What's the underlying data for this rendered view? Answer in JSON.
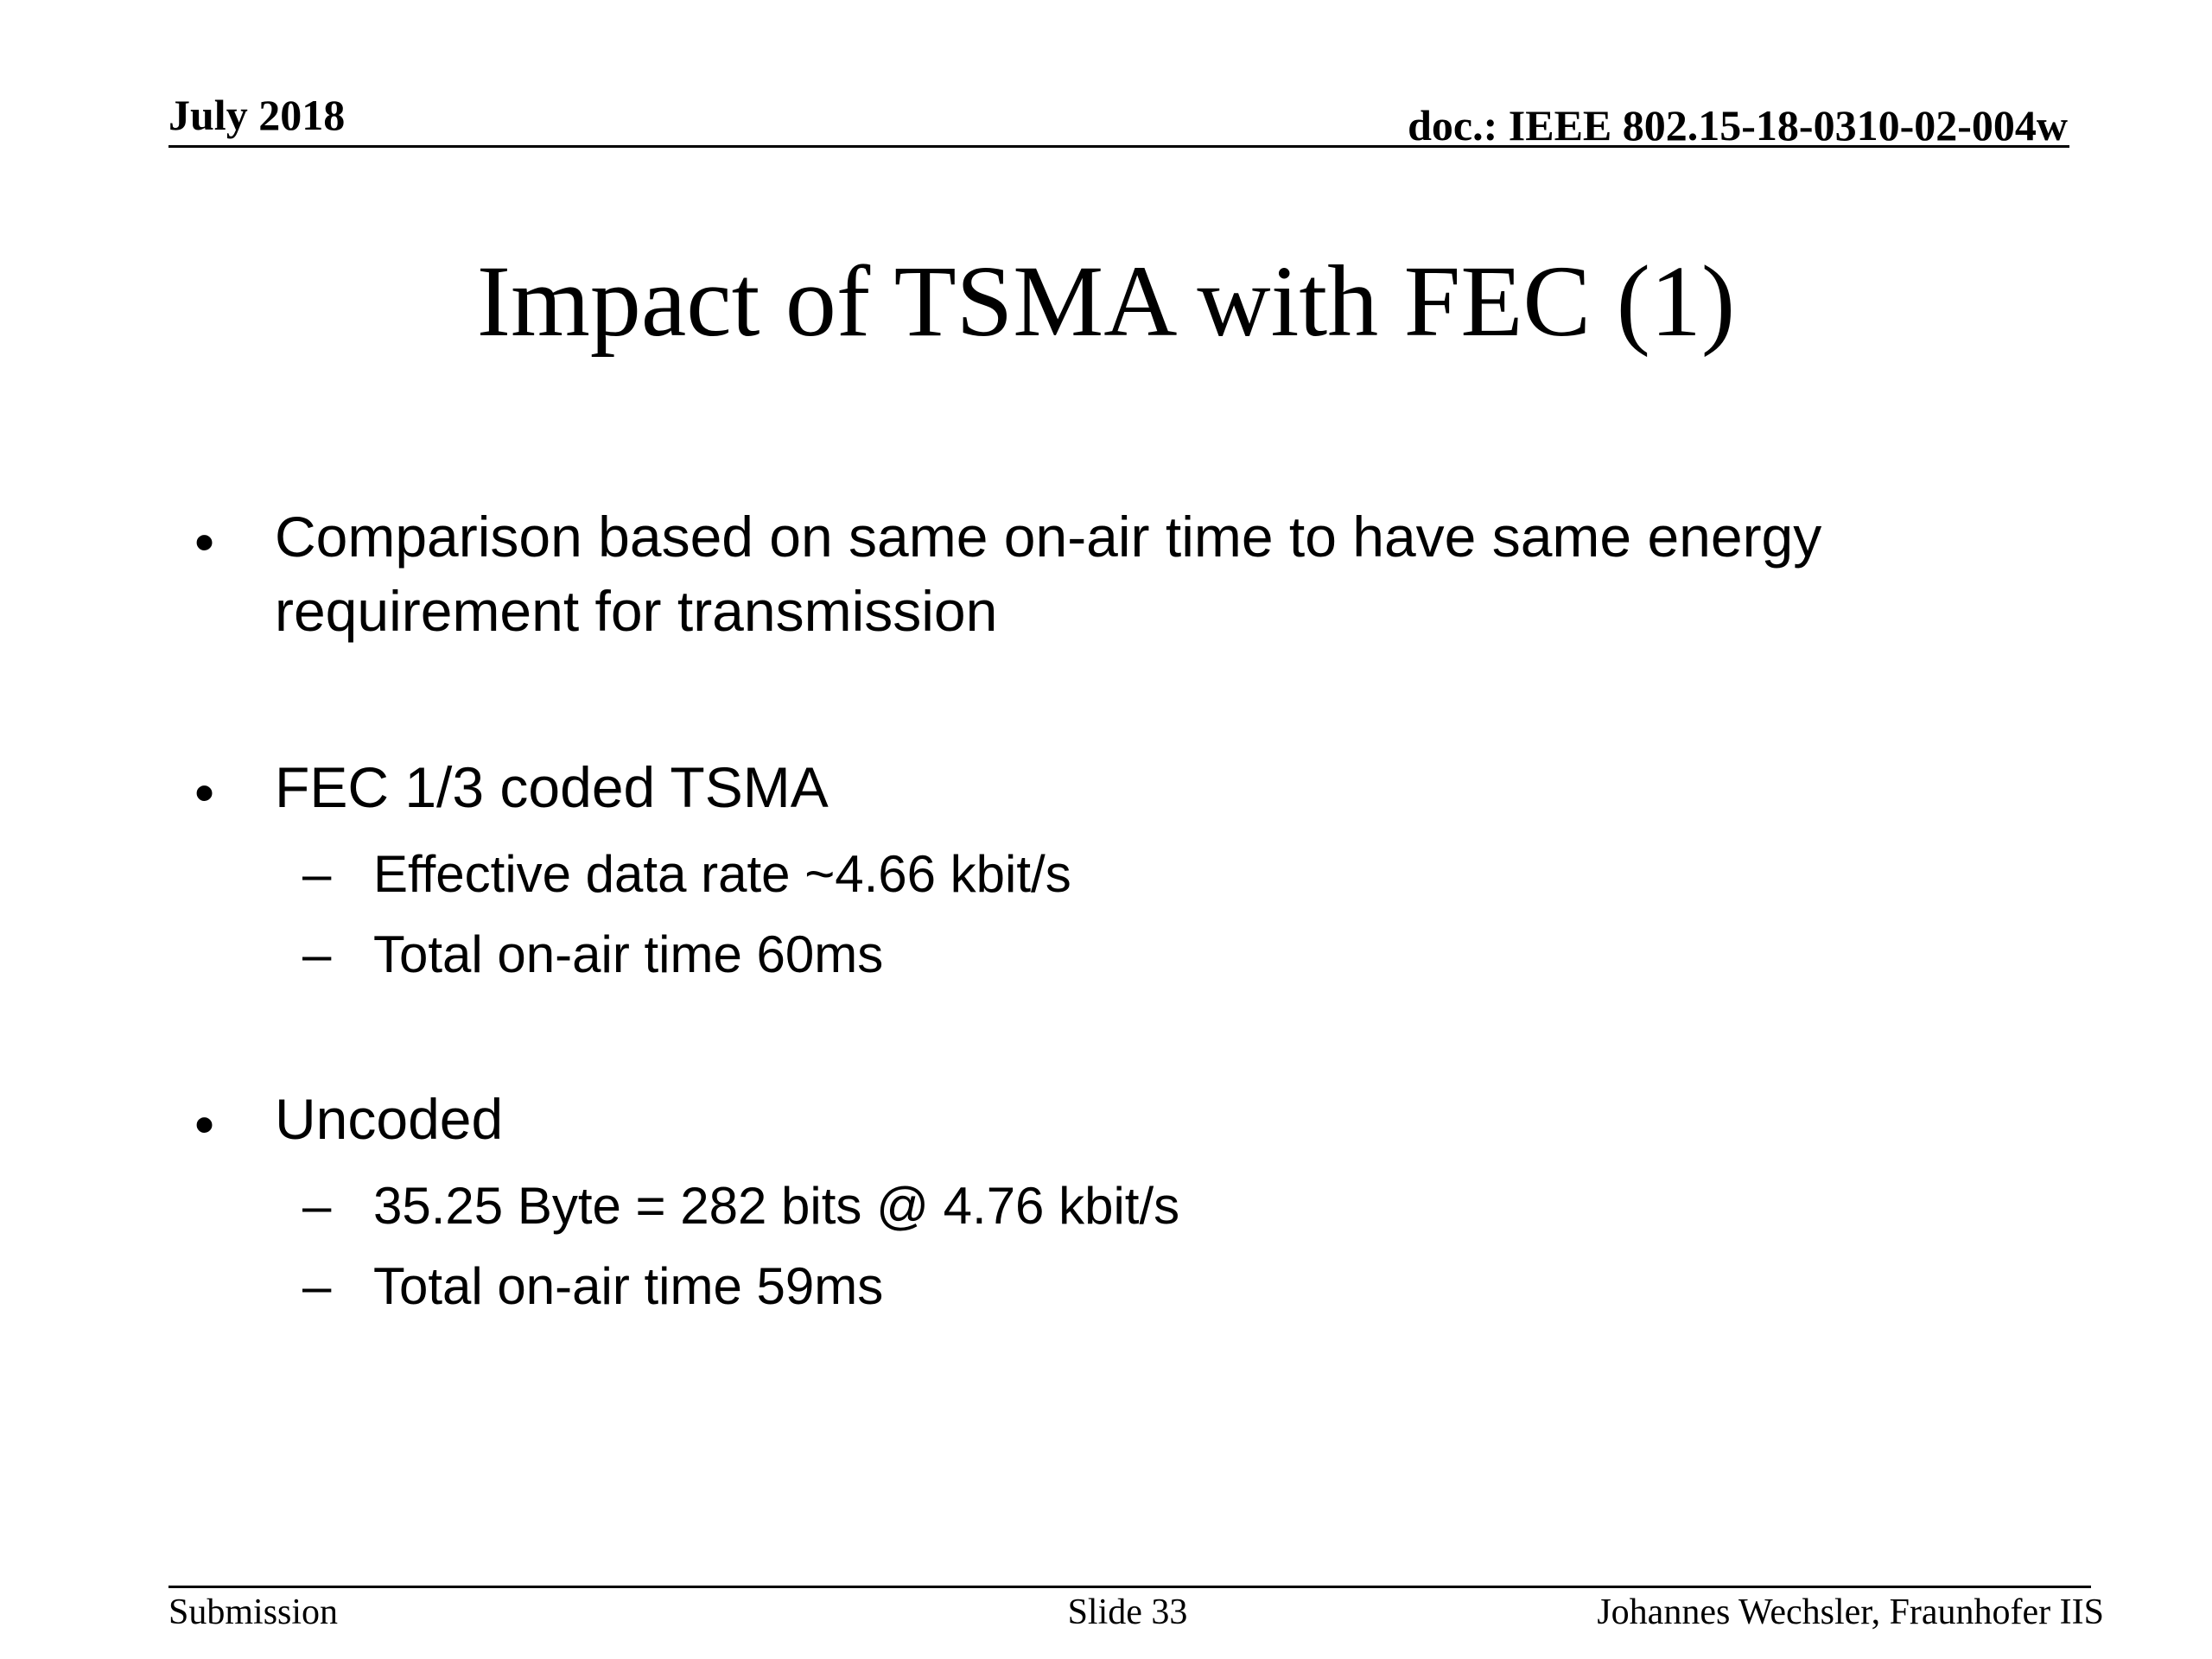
{
  "header": {
    "date": "July 2018",
    "doc_id": "doc.: IEEE 802.15-18-0310-02-004w"
  },
  "slide": {
    "title": "Impact of TSMA with FEC (1)",
    "bullets": [
      {
        "marker": "•",
        "lines": [
          "Comparison based on same on-air time to have same energy",
          "requirement for transmission"
        ],
        "subitems": []
      },
      {
        "marker": "•",
        "lines": [
          "FEC 1/3 coded TSMA"
        ],
        "subitems": [
          {
            "marker": "–",
            "text": "Effective data rate ~4.66 kbit/s"
          },
          {
            "marker": "–",
            "text": "Total on-air time 60ms"
          }
        ]
      },
      {
        "marker": "•",
        "lines": [
          "Uncoded"
        ],
        "subitems": [
          {
            "marker": "–",
            "text": "35.25 Byte = 282 bits @ 4.76 kbit/s"
          },
          {
            "marker": "–",
            "text": "Total on-air time 59ms"
          }
        ]
      }
    ]
  },
  "footer": {
    "left": "Submission",
    "center": "Slide 33",
    "right": "Johannes Wechsler, Fraunhofer IIS"
  }
}
